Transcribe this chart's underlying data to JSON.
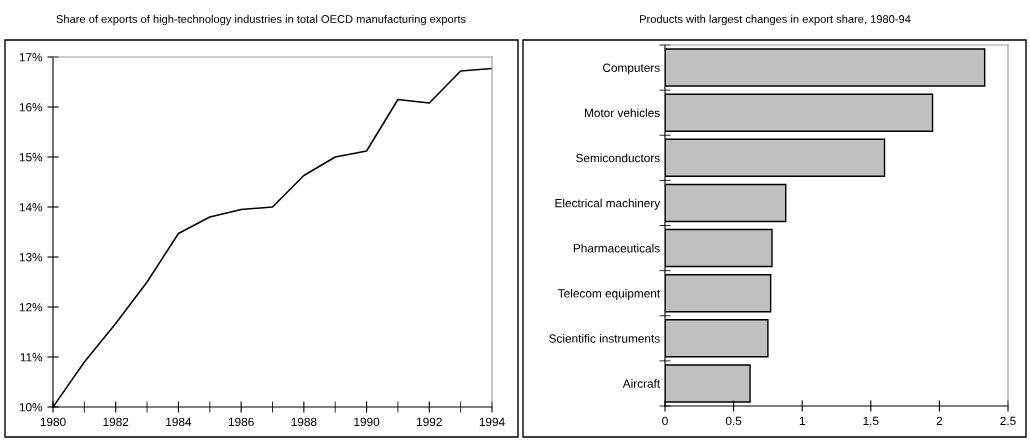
{
  "chart_data": [
    {
      "type": "line",
      "title": "Share of exports of high-technology industries in total OECD manufacturing exports",
      "x": [
        1980,
        1981,
        1982,
        1983,
        1984,
        1985,
        1986,
        1987,
        1988,
        1989,
        1990,
        1991,
        1992,
        1993,
        1994
      ],
      "series": [
        {
          "color": "#000000",
          "values": [
            10.0,
            10.9,
            11.67,
            12.5,
            13.47,
            13.8,
            13.95,
            14.0,
            14.63,
            15.0,
            15.12,
            16.15,
            16.08,
            16.72,
            16.77
          ]
        }
      ],
      "xlim": [
        1980,
        1994
      ],
      "xticks": [
        1980,
        1982,
        1984,
        1986,
        1988,
        1990,
        1992,
        1994
      ],
      "ylim": [
        10,
        17
      ],
      "yticks": [
        {
          "value": 10,
          "label": "10%"
        },
        {
          "value": 11,
          "label": "11%"
        },
        {
          "value": 12,
          "label": "12%"
        },
        {
          "value": 13,
          "label": "13%"
        },
        {
          "value": 14,
          "label": "14%"
        },
        {
          "value": 15,
          "label": "15%"
        },
        {
          "value": 16,
          "label": "16%"
        },
        {
          "value": 17,
          "label": "17%"
        }
      ],
      "grid": false,
      "legend": false,
      "marker": "none",
      "line_style": "solid"
    },
    {
      "type": "bar",
      "orientation": "horizontal",
      "title": "Products with largest changes in export share, 1980-94",
      "categories": [
        "Computers",
        "Motor vehicles",
        "Semiconductors",
        "Electrical machinery",
        "Pharmaceuticals",
        "Telecom equipment",
        "Scientific instruments",
        "Aircraft"
      ],
      "values": [
        2.33,
        1.95,
        1.6,
        0.88,
        0.78,
        0.77,
        0.75,
        0.62
      ],
      "color": "#c0c0c0",
      "xlim": [
        0,
        2.5
      ],
      "xticks": [
        0,
        0.5,
        1,
        1.5,
        2,
        2.5
      ],
      "grid": false,
      "legend": false
    }
  ]
}
